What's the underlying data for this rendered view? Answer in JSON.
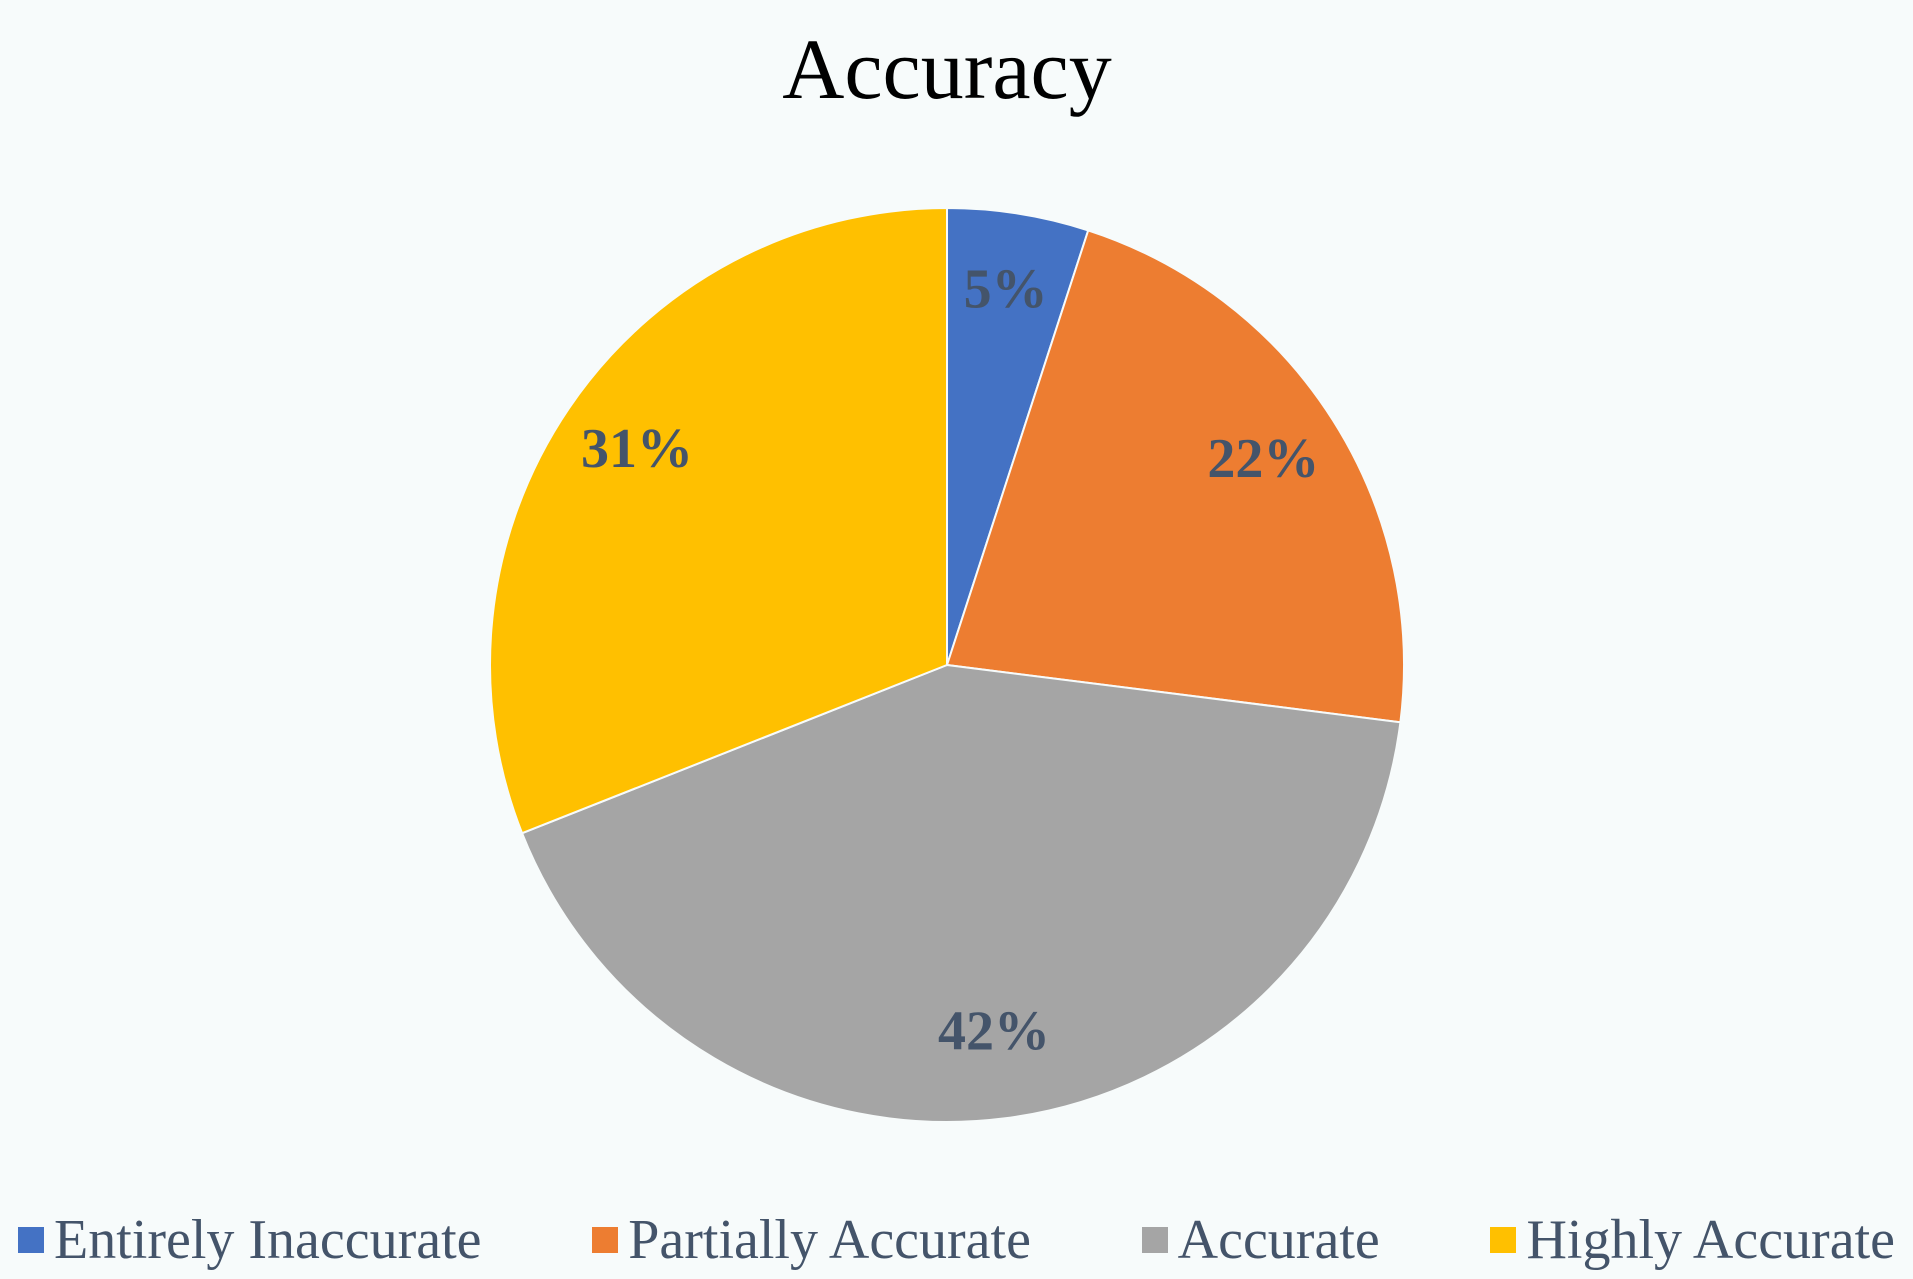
{
  "chart_data": {
    "type": "pie",
    "title": "Accuracy",
    "categories": [
      "Entirely Inaccurate",
      "Partially Accurate",
      "Accurate",
      "Highly Accurate"
    ],
    "values": [
      5,
      22,
      42,
      31
    ],
    "value_labels": [
      "5%",
      "22%",
      "42%",
      "31%"
    ],
    "colors": [
      "#4472c4",
      "#ed7d31",
      "#a5a5a5",
      "#ffc000"
    ],
    "legend": "bottom"
  }
}
